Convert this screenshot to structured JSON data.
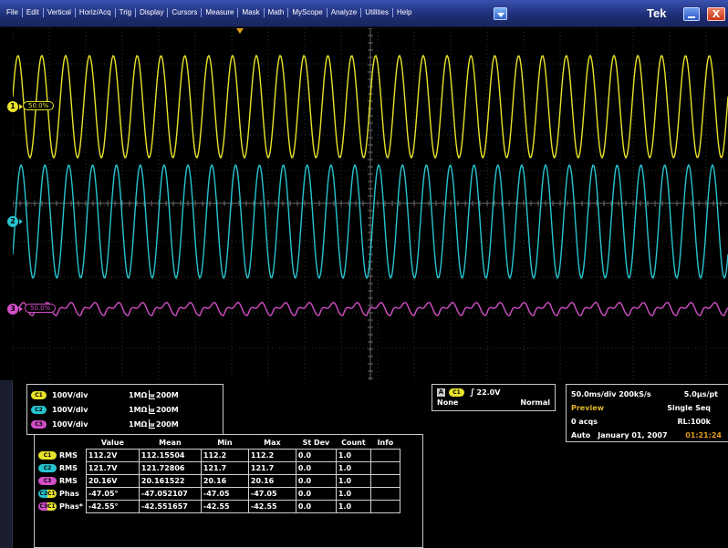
{
  "menu": {
    "items": [
      "File",
      "Edit",
      "Vertical",
      "Horiz/Acq",
      "Trig",
      "Display",
      "Cursors",
      "Measure",
      "Mask",
      "Math",
      "MyScope",
      "Analyze",
      "Utilities",
      "Help"
    ],
    "brand": "Tek",
    "close_label": "X"
  },
  "colors": {
    "ch1": "#e8e22a",
    "ch2": "#27c4cf",
    "ch3": "#d24fc7",
    "trigger": "#e39b1c"
  },
  "display": {
    "markers": {
      "ch1": "1",
      "ch2": "2",
      "ch3": "3"
    },
    "ref_tags": {
      "ch1": "50.0%",
      "ch3": "50.0%"
    },
    "waveforms": [
      {
        "channel": "ch1",
        "shape": "sine",
        "cycles_visible": 30,
        "amplitude_v": 158
      },
      {
        "channel": "ch2",
        "shape": "sine",
        "cycles_visible": 30,
        "amplitude_v": 172
      },
      {
        "channel": "ch3",
        "shape": "rectified-ripple",
        "cycles_visible": 30
      }
    ]
  },
  "channels": [
    {
      "badge": "C1",
      "scale": "100V/div",
      "impedance": "1MΩ",
      "bandwidth": "200M",
      "bw_prefix": "W"
    },
    {
      "badge": "C2",
      "scale": "100V/div",
      "impedance": "1MΩ",
      "bandwidth": "200M",
      "bw_prefix": "W"
    },
    {
      "badge": "C3",
      "scale": "100V/div",
      "impedance": "1MΩ",
      "bandwidth": "200M",
      "bw_prefix": "W"
    }
  ],
  "trigger": {
    "badge_a": "A",
    "source": "C1",
    "level": "22.0V",
    "coupling": "None",
    "mode": "Normal"
  },
  "timebase": {
    "horizontal": "50.0ms/div 200kS/s",
    "resolution": "5.0µs/pt",
    "status": "Preview",
    "run_mode": "Single Seq",
    "acqs": "0 acqs",
    "record_length": "RL:100k",
    "trigger_mode": "Auto",
    "date": "January 01, 2007",
    "time": "01:21:24"
  },
  "measurements": {
    "headers": [
      "",
      "Value",
      "Mean",
      "Min",
      "Max",
      "St Dev",
      "Count",
      "Info"
    ],
    "rows": [
      {
        "badge": "C1",
        "label": "RMS",
        "value": "112.2V",
        "mean": "112.15504",
        "min": "112.2",
        "max": "112.2",
        "stdev": "0.0",
        "count": "1.0",
        "info": ""
      },
      {
        "badge": "C2",
        "label": "RMS",
        "value": "121.7V",
        "mean": "121.72806",
        "min": "121.7",
        "max": "121.7",
        "stdev": "0.0",
        "count": "1.0",
        "info": ""
      },
      {
        "badge": "C3",
        "label": "RMS",
        "value": "20.16V",
        "mean": "20.161522",
        "min": "20.16",
        "max": "20.16",
        "stdev": "0.0",
        "count": "1.0",
        "info": ""
      },
      {
        "badge": "C2C1",
        "label": "Phas",
        "value": "-47.05°",
        "mean": "-47.052107",
        "min": "-47.05",
        "max": "-47.05",
        "stdev": "0.0",
        "count": "1.0",
        "info": ""
      },
      {
        "badge": "C3C1",
        "label": "Phas*",
        "value": "-42.55°",
        "mean": "-42.551657",
        "min": "-42.55",
        "max": "-42.55",
        "stdev": "0.0",
        "count": "1.0",
        "info": ""
      }
    ]
  }
}
